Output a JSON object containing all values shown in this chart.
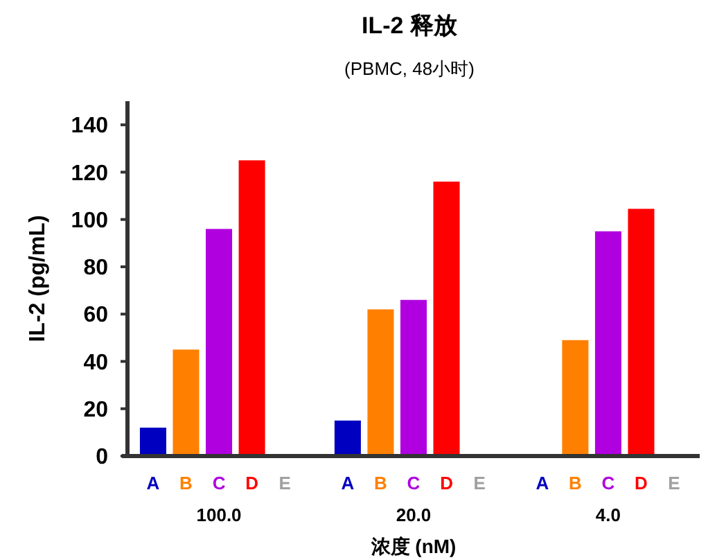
{
  "chart_data": {
    "type": "bar",
    "title": "IL-2 释放",
    "subtitle": "(PBMC, 48小时)",
    "xlabel": "浓度 (nM)",
    "ylabel": "IL-2 (pg/mL)",
    "categories": [
      "100.0",
      "20.0",
      "4.0"
    ],
    "ylim": [
      0,
      150
    ],
    "yticks": [
      0,
      20,
      40,
      60,
      80,
      100,
      120,
      140
    ],
    "grid": false,
    "series": [
      {
        "name": "A",
        "color": "#0000c0",
        "values": [
          12,
          15,
          null
        ]
      },
      {
        "name": "B",
        "color": "#ff8000",
        "values": [
          45,
          62,
          49
        ]
      },
      {
        "name": "C",
        "color": "#b000e0",
        "values": [
          96,
          66,
          95
        ]
      },
      {
        "name": "D",
        "color": "#ff0000",
        "values": [
          125,
          116,
          104.5
        ]
      },
      {
        "name": "E",
        "color": "#a0a0a0",
        "values": [
          null,
          null,
          null
        ]
      }
    ]
  }
}
